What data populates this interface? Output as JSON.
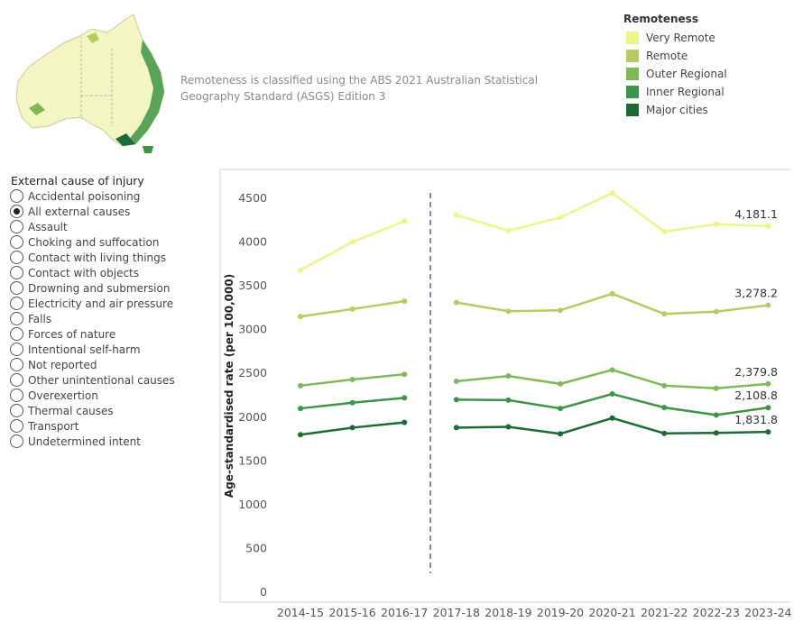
{
  "map": {
    "icon": "australia-remoteness-map"
  },
  "note": "Remoteness is classified using the ABS 2021 Australian Statistical Geography Standard (ASGS) Edition 3",
  "legend": {
    "title": "Remoteness",
    "items": [
      {
        "label": "Very Remote",
        "color": "#eef38a"
      },
      {
        "label": "Remote",
        "color": "#b6cb63"
      },
      {
        "label": "Outer Regional",
        "color": "#7fb957"
      },
      {
        "label": "Inner Regional",
        "color": "#3e9448"
      },
      {
        "label": "Major cities",
        "color": "#1a6b35"
      }
    ]
  },
  "filter": {
    "title": "External cause of injury",
    "selected": "All external causes",
    "options": [
      "Accidental poisoning",
      "All external causes",
      "Assault",
      "Choking and suffocation",
      "Contact with living things",
      "Contact with objects",
      "Drowning and submersion",
      "Electricity and air pressure",
      "Falls",
      "Forces of nature",
      "Intentional self-harm",
      "Not reported",
      "Other unintentional causes",
      "Overexertion",
      "Thermal causes",
      "Transport",
      "Undetermined intent"
    ]
  },
  "chart_data": {
    "type": "line",
    "title": "",
    "xlabel": "",
    "ylabel": "Age-standardised rate (per 100,000)",
    "categories": [
      "2014-15",
      "2015-16",
      "2016-17",
      "2017-18",
      "2018-19",
      "2019-20",
      "2020-21",
      "2021-22",
      "2022-23",
      "2023-24"
    ],
    "ylim": [
      0,
      4700
    ],
    "yticks": [
      0,
      500,
      1000,
      1500,
      2000,
      2500,
      3000,
      3500,
      4000,
      4500
    ],
    "yticklabels": [
      "0",
      "500",
      "1000",
      "1500",
      "2000",
      "2500",
      "3000",
      "3500",
      "4000",
      "4500"
    ],
    "break_between": [
      "2016-17",
      "2017-18"
    ],
    "grid": false,
    "legend_position": "top-right",
    "series": [
      {
        "name": "Very Remote",
        "color": "#eef38a",
        "values": [
          3680,
          4000,
          4240,
          4310,
          4130,
          4280,
          4560,
          4120,
          4205,
          4181.1
        ],
        "end_label": "4,181.1"
      },
      {
        "name": "Remote",
        "color": "#b6cb63",
        "values": [
          3150,
          3235,
          3325,
          3310,
          3210,
          3220,
          3410,
          3180,
          3205,
          3278.2
        ],
        "end_label": "3,278.2"
      },
      {
        "name": "Outer Regional",
        "color": "#7fb957",
        "values": [
          2360,
          2430,
          2490,
          2410,
          2470,
          2380,
          2540,
          2360,
          2330,
          2379.8
        ],
        "end_label": "2,379.8"
      },
      {
        "name": "Inner Regional",
        "color": "#3e9448",
        "values": [
          2100,
          2165,
          2220,
          2200,
          2195,
          2100,
          2265,
          2110,
          2025,
          2108.8
        ],
        "end_label": "2,108.8"
      },
      {
        "name": "Major cities",
        "color": "#1a6b35",
        "values": [
          1800,
          1880,
          1940,
          1880,
          1890,
          1810,
          1990,
          1815,
          1820,
          1831.8
        ],
        "end_label": "1,831.8"
      }
    ]
  }
}
